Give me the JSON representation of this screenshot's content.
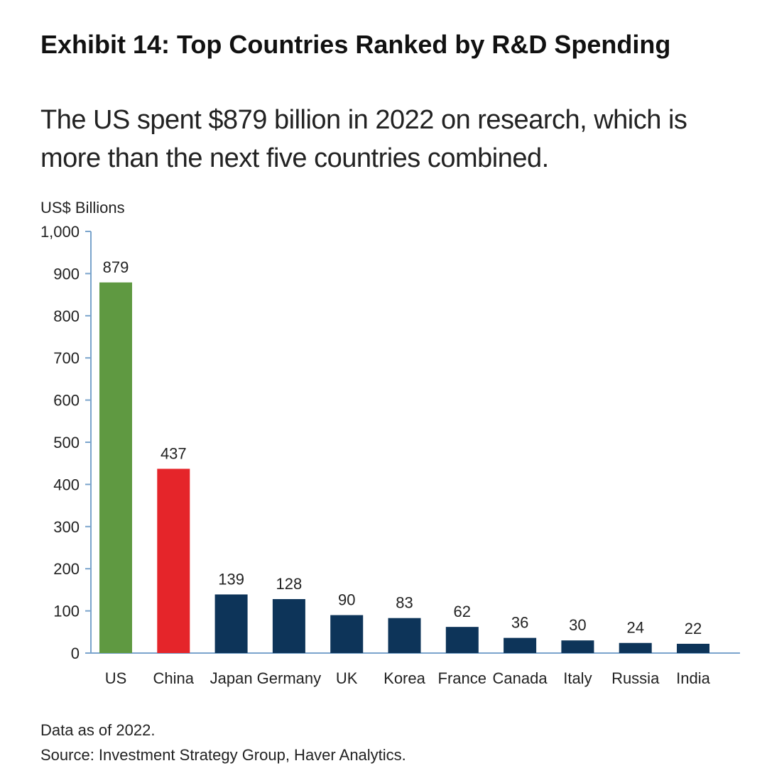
{
  "header": {
    "title": "Exhibit 14: Top Countries Ranked by R&D Spending",
    "subtitle": "The US spent $879 billion in 2022 on research, which is more than the next five countries combined."
  },
  "colors": {
    "us": "#5f9941",
    "china": "#e5252a",
    "other": "#0d3459",
    "axis": "#7aa4cc",
    "text": "#222222"
  },
  "chart_data": {
    "type": "bar",
    "title": "Exhibit 14: Top Countries Ranked by R&D Spending",
    "ylabel": "US$ Billions",
    "xlabel": "",
    "categories": [
      "US",
      "China",
      "Japan",
      "Germany",
      "UK",
      "Korea",
      "France",
      "Canada",
      "Italy",
      "Russia",
      "India"
    ],
    "values": [
      879,
      437,
      139,
      128,
      90,
      83,
      62,
      36,
      30,
      24,
      22
    ],
    "data_labels": [
      "879",
      "437",
      "139",
      "128",
      "90",
      "83",
      "62",
      "36",
      "30",
      "24",
      "22"
    ],
    "bar_colors": [
      "#5f9941",
      "#e5252a",
      "#0d3459",
      "#0d3459",
      "#0d3459",
      "#0d3459",
      "#0d3459",
      "#0d3459",
      "#0d3459",
      "#0d3459",
      "#0d3459"
    ],
    "ylim": [
      0,
      1000
    ],
    "yticks": [
      0,
      100,
      200,
      300,
      400,
      500,
      600,
      700,
      800,
      900,
      1000
    ],
    "ytick_labels": [
      "0",
      "100",
      "200",
      "300",
      "400",
      "500",
      "600",
      "700",
      "800",
      "900",
      "1,000"
    ],
    "grid": false,
    "legend": "none"
  },
  "footer": {
    "note": "Data as of 2022.",
    "source": "Source: Investment Strategy Group, Haver Analytics."
  }
}
